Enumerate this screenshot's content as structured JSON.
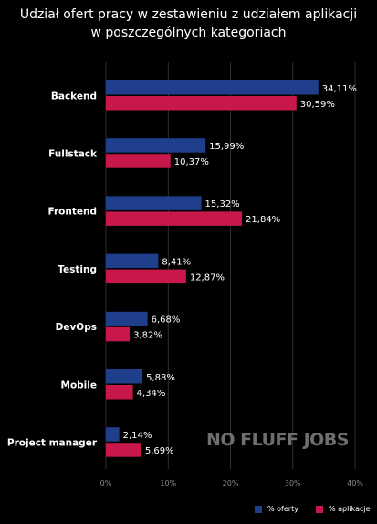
{
  "title": {
    "line1": "Udział ofert pracy w zestawieniu z udziałem aplikacji",
    "line2": "w poszczególnych kategoriach"
  },
  "watermark": "NO FLUFF JOBS",
  "colors": {
    "background": "#000000",
    "offers": "#1f3f8c",
    "applications": "#c8174b",
    "grid": "#3a3a3a",
    "axis_text": "#8a8a8a",
    "watermark": "#6e6e6e"
  },
  "legend": {
    "offers_label": "% oferty",
    "applications_label": "% aplikacje"
  },
  "chart_data": {
    "type": "bar",
    "orientation": "horizontal",
    "categories": [
      "Backend",
      "Fullstack",
      "Frontend",
      "Testing",
      "DevOps",
      "Mobile",
      "Project manager"
    ],
    "series": [
      {
        "name": "% oferty",
        "values": [
          34.11,
          15.99,
          15.32,
          8.41,
          6.68,
          5.88,
          2.14
        ],
        "labels": [
          "34,11%",
          "15,99%",
          "15,32%",
          "8,41%",
          "6,68%",
          "5,88%",
          "2,14%"
        ]
      },
      {
        "name": "% aplikacje",
        "values": [
          30.59,
          10.37,
          21.84,
          12.87,
          3.82,
          4.34,
          5.69
        ],
        "labels": [
          "30,59%",
          "10,37%",
          "21,84%",
          "12,87%",
          "3,82%",
          "4,34%",
          "5,69%"
        ]
      }
    ],
    "xlim": [
      0,
      40
    ],
    "xticks": [
      0,
      10,
      20,
      30,
      40
    ],
    "xtick_labels": [
      "0%",
      "10%",
      "20%",
      "30%",
      "40%"
    ],
    "grid": true,
    "legend_position": "bottom-right"
  }
}
